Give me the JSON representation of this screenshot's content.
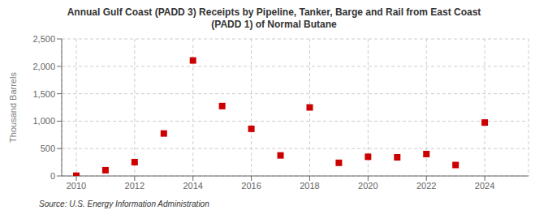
{
  "chart_data": {
    "type": "scatter",
    "title": "Annual Gulf Coast (PADD 3) Receipts by Pipeline, Tanker, Barge and Rail from East Coast\n(PADD 1) of Normal Butane",
    "ylabel": "Thousand Barrels",
    "annotations": [
      "Source: U.S. Energy Information Administration"
    ],
    "x": [
      2010,
      2011,
      2012,
      2013,
      2014,
      2015,
      2016,
      2017,
      2018,
      2019,
      2020,
      2021,
      2022,
      2023,
      2024
    ],
    "values": [
      5,
      105,
      252,
      775,
      2107,
      1275,
      860,
      375,
      1250,
      240,
      350,
      340,
      400,
      200,
      975
    ],
    "color": "#cc0000",
    "marker": "square",
    "xlim": [
      2009.5,
      2025.5
    ],
    "xticks": [
      2010,
      2012,
      2014,
      2016,
      2018,
      2020,
      2022,
      2024
    ],
    "ylim": [
      0,
      2500
    ],
    "yticks": [
      0,
      500,
      {
        "value": 1000,
        "label": "1,000"
      },
      {
        "value": 1500,
        "label": "1,500"
      },
      {
        "value": 2000,
        "label": "2,000"
      },
      {
        "value": 2500,
        "label": "2,500"
      }
    ],
    "grid": true
  }
}
